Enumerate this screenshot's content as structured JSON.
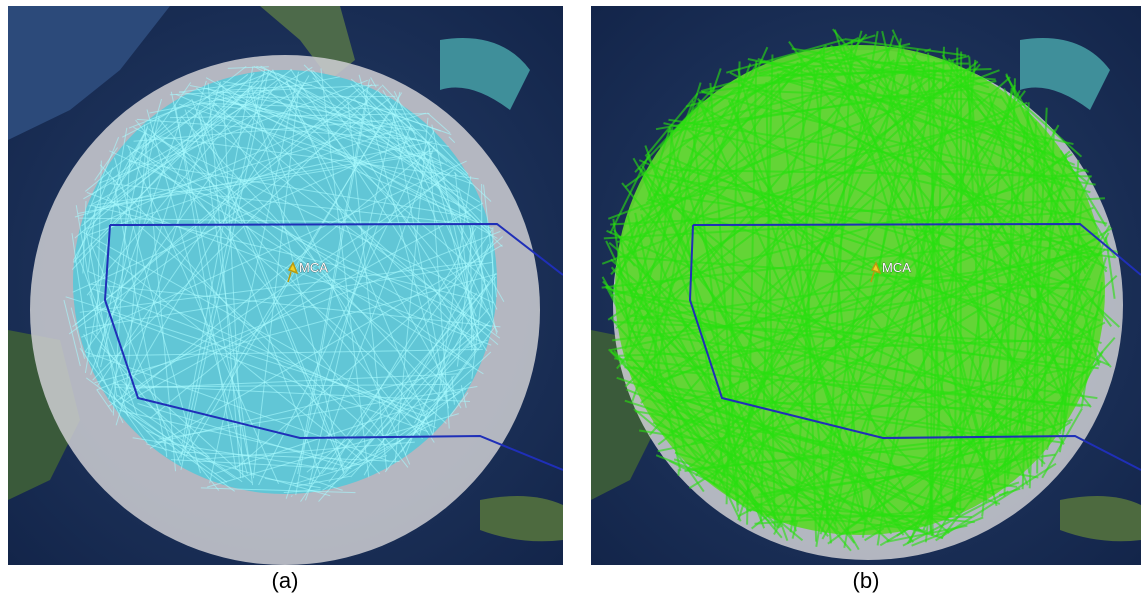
{
  "panels": [
    {
      "marker_label": "MCA",
      "caption": "(a)"
    },
    {
      "marker_label": "MCA",
      "caption": "(b)"
    }
  ]
}
